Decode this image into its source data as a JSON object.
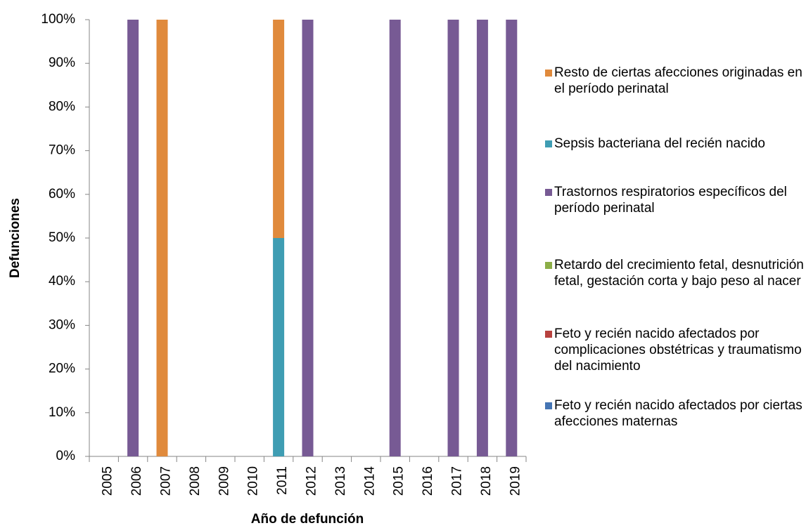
{
  "chart_data": {
    "type": "stacked_bar",
    "xlabel": "Año de defunción",
    "ylabel": "Defunciones",
    "categories": [
      "2005",
      "2006",
      "2007",
      "2008",
      "2009",
      "2010",
      "2011",
      "2012",
      "2013",
      "2014",
      "2015",
      "2016",
      "2017",
      "2018",
      "2019"
    ],
    "series": [
      {
        "name": "Resto de ciertas afecciones originadas en el período perinatal",
        "color": "#e08a3c",
        "values": [
          0,
          0,
          100,
          0,
          0,
          0,
          50,
          0,
          0,
          0,
          0,
          0,
          0,
          0,
          0
        ]
      },
      {
        "name": "Sepsis bacteriana del recién nacido",
        "color": "#3f9db3",
        "values": [
          0,
          0,
          0,
          0,
          0,
          0,
          50,
          0,
          0,
          0,
          0,
          0,
          0,
          0,
          0
        ]
      },
      {
        "name": "Trastornos respiratorios específicos del período perinatal",
        "color": "#775a94",
        "values": [
          0,
          100,
          0,
          0,
          0,
          0,
          0,
          100,
          0,
          0,
          100,
          0,
          100,
          100,
          100
        ]
      },
      {
        "name": "Retardo del crecimiento fetal, desnutrición fetal, gestación corta y bajo peso al nacer",
        "color": "#8cae47",
        "values": [
          0,
          0,
          0,
          0,
          0,
          0,
          0,
          0,
          0,
          0,
          0,
          0,
          0,
          0,
          0
        ]
      },
      {
        "name": "Feto y recién nacido afectados por complicaciones obstétricas y traumatismo del nacimiento",
        "color": "#b8423f",
        "values": [
          0,
          0,
          0,
          0,
          0,
          0,
          0,
          0,
          0,
          0,
          0,
          0,
          0,
          0,
          0
        ]
      },
      {
        "name": "Feto y recién nacido afectados por ciertas afecciones maternas",
        "color": "#4575b4",
        "values": [
          0,
          0,
          0,
          0,
          0,
          0,
          0,
          0,
          0,
          0,
          0,
          0,
          0,
          0,
          0
        ]
      }
    ],
    "ylim": [
      0,
      100
    ],
    "yticks": [
      {
        "value": 0,
        "label": "0%"
      },
      {
        "value": 10,
        "label": "10%"
      },
      {
        "value": 20,
        "label": "20%"
      },
      {
        "value": 30,
        "label": "30%"
      },
      {
        "value": 40,
        "label": "40%"
      },
      {
        "value": 50,
        "label": "50%"
      },
      {
        "value": 60,
        "label": "60%"
      },
      {
        "value": 70,
        "label": "70%"
      },
      {
        "value": 80,
        "label": "80%"
      },
      {
        "value": 90,
        "label": "90%"
      },
      {
        "value": 100,
        "label": "100%"
      }
    ],
    "grid": false,
    "legend": "right"
  }
}
